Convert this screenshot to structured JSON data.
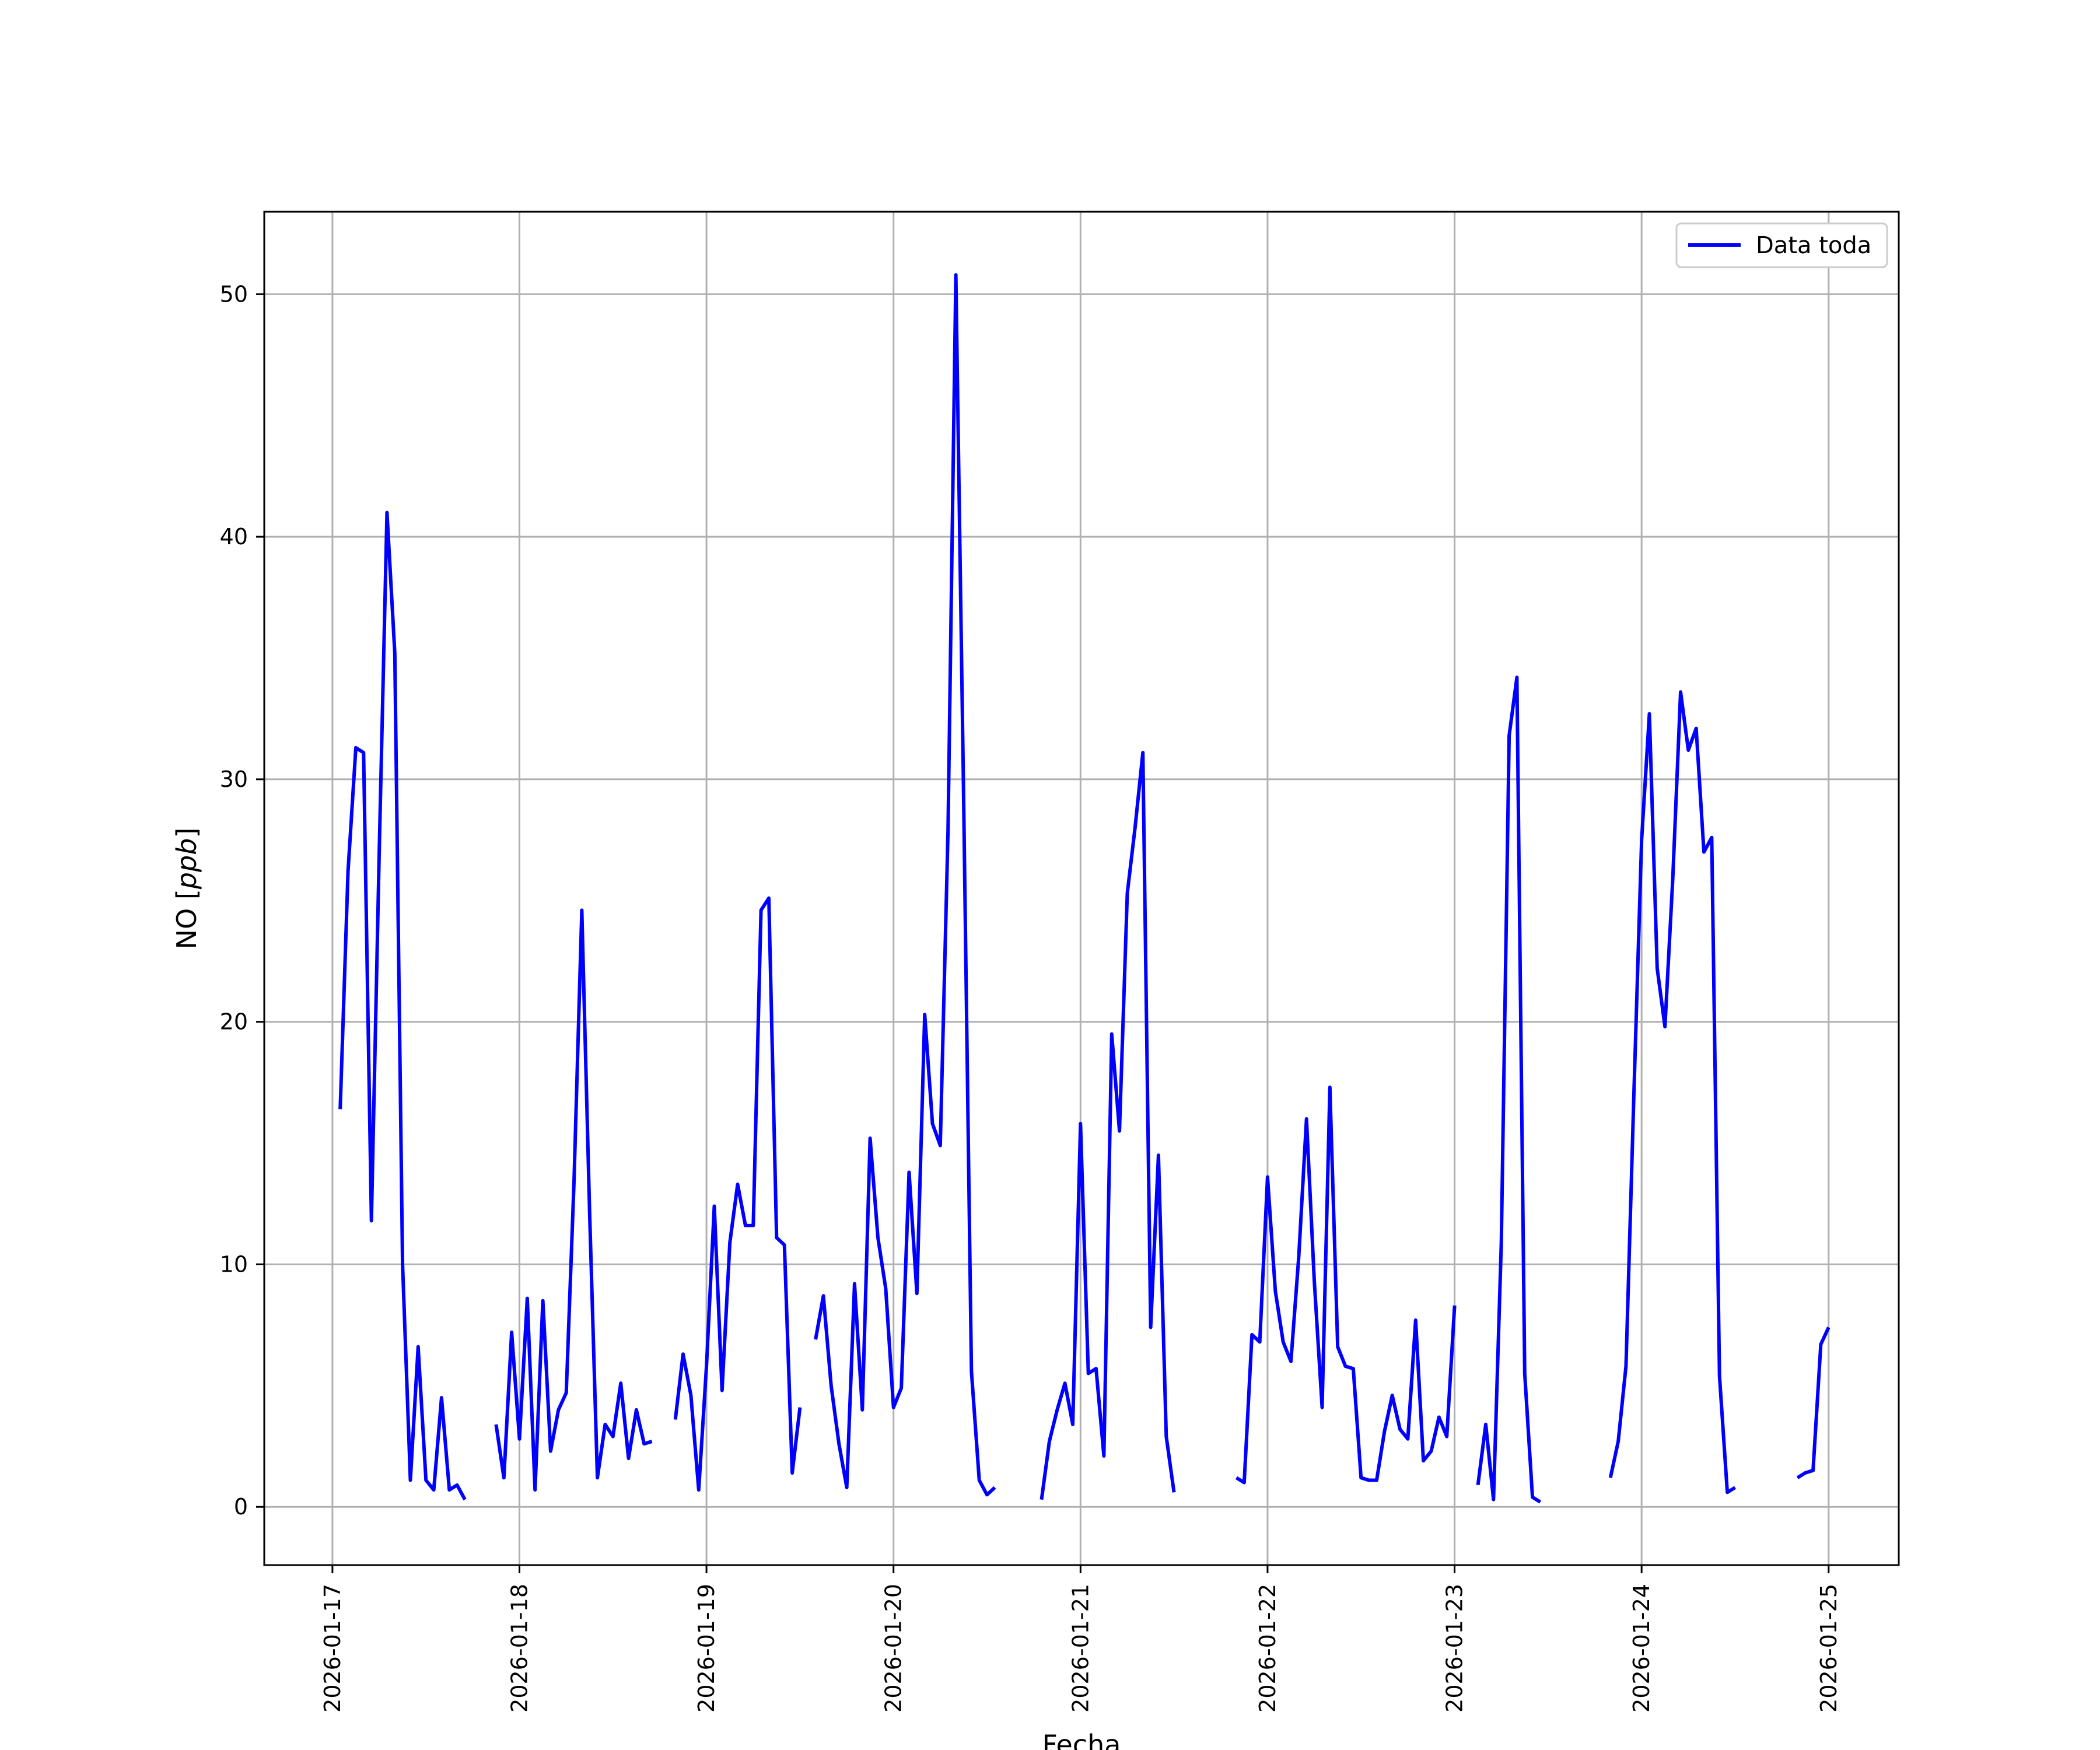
{
  "chart_data": {
    "type": "line",
    "title": "",
    "xlabel": "Fecha",
    "ylabel_prefix": "NO [",
    "ylabel_unit": "ppb",
    "ylabel_suffix": "]",
    "x_unit": "date",
    "xlim": [
      "2026-01-16 15:15",
      "2026-01-25 09:00"
    ],
    "ylim": [
      -2.4,
      53.4
    ],
    "x_ticks": [
      "2026-01-17",
      "2026-01-18",
      "2026-01-19",
      "2026-01-20",
      "2026-01-21",
      "2026-01-22",
      "2026-01-23",
      "2026-01-24",
      "2026-01-25"
    ],
    "y_ticks": [
      0,
      10,
      20,
      30,
      40,
      50
    ],
    "y_tick_labels": [
      "0",
      "10",
      "20",
      "30",
      "40",
      "50"
    ],
    "grid": true,
    "legend": {
      "position": "top-right",
      "entries": [
        "Data toda"
      ]
    },
    "series_colors": [
      "#0000ff"
    ],
    "series": [
      {
        "name": "Data toda",
        "segments": [
          [
            [
              "2026-01-17 01:00",
              16.4
            ],
            [
              "2026-01-17 02:00",
              26.2
            ],
            [
              "2026-01-17 03:00",
              31.3
            ],
            [
              "2026-01-17 04:00",
              31.1
            ],
            [
              "2026-01-17 05:00",
              11.8
            ],
            [
              "2026-01-17 06:00",
              26.9
            ],
            [
              "2026-01-17 07:00",
              41.0
            ],
            [
              "2026-01-17 08:00",
              35.2
            ],
            [
              "2026-01-17 09:00",
              10.0
            ],
            [
              "2026-01-17 10:00",
              1.1
            ],
            [
              "2026-01-17 11:00",
              6.6
            ],
            [
              "2026-01-17 12:00",
              1.1
            ],
            [
              "2026-01-17 13:00",
              0.7
            ],
            [
              "2026-01-17 14:00",
              4.5
            ],
            [
              "2026-01-17 15:00",
              0.7
            ],
            [
              "2026-01-17 16:00",
              0.9
            ],
            [
              "2026-01-17 17:00",
              0.3
            ]
          ],
          [
            [
              "2026-01-17 21:00",
              3.4
            ],
            [
              "2026-01-17 22:00",
              1.2
            ],
            [
              "2026-01-17 23:00",
              7.2
            ],
            [
              "2026-01-18 00:00",
              2.8
            ],
            [
              "2026-01-18 01:00",
              8.6
            ],
            [
              "2026-01-18 02:00",
              0.7
            ],
            [
              "2026-01-18 03:00",
              8.5
            ],
            [
              "2026-01-18 04:00",
              2.3
            ],
            [
              "2026-01-18 05:00",
              4.0
            ],
            [
              "2026-01-18 06:00",
              4.7
            ],
            [
              "2026-01-18 07:00",
              13.4
            ],
            [
              "2026-01-18 08:00",
              24.6
            ],
            [
              "2026-01-18 09:00",
              12.2
            ],
            [
              "2026-01-18 10:00",
              1.2
            ],
            [
              "2026-01-18 11:00",
              3.4
            ],
            [
              "2026-01-18 12:00",
              2.9
            ],
            [
              "2026-01-18 13:00",
              5.1
            ],
            [
              "2026-01-18 14:00",
              2.0
            ],
            [
              "2026-01-18 15:00",
              4.0
            ],
            [
              "2026-01-18 16:00",
              2.6
            ],
            [
              "2026-01-18 17:00",
              2.7
            ]
          ],
          [
            [
              "2026-01-18 20:00",
              3.6
            ],
            [
              "2026-01-18 21:00",
              6.3
            ],
            [
              "2026-01-18 22:00",
              4.6
            ],
            [
              "2026-01-18 23:00",
              0.7
            ],
            [
              "2026-01-19 00:00",
              5.8
            ],
            [
              "2026-01-19 01:00",
              12.4
            ],
            [
              "2026-01-19 02:00",
              4.8
            ],
            [
              "2026-01-19 03:00",
              10.9
            ],
            [
              "2026-01-19 04:00",
              13.3
            ],
            [
              "2026-01-19 05:00",
              11.6
            ],
            [
              "2026-01-19 06:00",
              11.6
            ],
            [
              "2026-01-19 07:00",
              24.6
            ],
            [
              "2026-01-19 08:00",
              25.1
            ],
            [
              "2026-01-19 09:00",
              11.1
            ],
            [
              "2026-01-19 10:00",
              10.8
            ],
            [
              "2026-01-19 11:00",
              1.4
            ],
            [
              "2026-01-19 12:00",
              4.1
            ]
          ],
          [
            [
              "2026-01-19 14:00",
              6.9
            ],
            [
              "2026-01-19 15:00",
              8.7
            ],
            [
              "2026-01-19 16:00",
              5.0
            ],
            [
              "2026-01-19 17:00",
              2.6
            ],
            [
              "2026-01-19 18:00",
              0.8
            ],
            [
              "2026-01-19 19:00",
              9.2
            ],
            [
              "2026-01-19 20:00",
              4.0
            ],
            [
              "2026-01-19 21:00",
              15.2
            ],
            [
              "2026-01-19 22:00",
              11.1
            ],
            [
              "2026-01-19 23:00",
              9.0
            ],
            [
              "2026-01-20 00:00",
              4.1
            ],
            [
              "2026-01-20 01:00",
              4.9
            ],
            [
              "2026-01-20 02:00",
              13.8
            ],
            [
              "2026-01-20 03:00",
              8.8
            ],
            [
              "2026-01-20 04:00",
              20.3
            ],
            [
              "2026-01-20 05:00",
              15.8
            ],
            [
              "2026-01-20 06:00",
              14.9
            ],
            [
              "2026-01-20 07:00",
              27.9
            ],
            [
              "2026-01-20 08:00",
              50.8
            ],
            [
              "2026-01-20 09:00",
              29.3
            ],
            [
              "2026-01-20 10:00",
              5.6
            ],
            [
              "2026-01-20 11:00",
              1.1
            ],
            [
              "2026-01-20 12:00",
              0.5
            ],
            [
              "2026-01-20 13:00",
              0.8
            ]
          ],
          [
            [
              "2026-01-20 19:00",
              0.3
            ],
            [
              "2026-01-20 20:00",
              2.7
            ],
            [
              "2026-01-20 21:00",
              4.0
            ],
            [
              "2026-01-20 22:00",
              5.1
            ],
            [
              "2026-01-20 23:00",
              3.4
            ],
            [
              "2026-01-21 00:00",
              15.8
            ],
            [
              "2026-01-21 01:00",
              5.5
            ],
            [
              "2026-01-21 02:00",
              5.7
            ],
            [
              "2026-01-21 03:00",
              2.1
            ],
            [
              "2026-01-21 04:00",
              19.5
            ],
            [
              "2026-01-21 05:00",
              15.5
            ],
            [
              "2026-01-21 06:00",
              25.3
            ],
            [
              "2026-01-21 07:00",
              28.0
            ],
            [
              "2026-01-21 08:00",
              31.1
            ],
            [
              "2026-01-21 09:00",
              7.4
            ],
            [
              "2026-01-21 10:00",
              14.5
            ],
            [
              "2026-01-21 11:00",
              2.9
            ],
            [
              "2026-01-21 12:00",
              0.6
            ]
          ],
          [
            [
              "2026-01-21 20:00",
              1.2
            ],
            [
              "2026-01-21 21:00",
              1.0
            ],
            [
              "2026-01-21 22:00",
              7.1
            ],
            [
              "2026-01-21 23:00",
              6.8
            ],
            [
              "2026-01-22 00:00",
              13.6
            ],
            [
              "2026-01-22 01:00",
              8.9
            ],
            [
              "2026-01-22 02:00",
              6.8
            ],
            [
              "2026-01-22 03:00",
              6.0
            ],
            [
              "2026-01-22 04:00",
              10.3
            ],
            [
              "2026-01-22 05:00",
              16.0
            ],
            [
              "2026-01-22 06:00",
              9.3
            ],
            [
              "2026-01-22 07:00",
              4.1
            ],
            [
              "2026-01-22 08:00",
              17.3
            ],
            [
              "2026-01-22 09:00",
              6.6
            ],
            [
              "2026-01-22 10:00",
              5.8
            ],
            [
              "2026-01-22 11:00",
              5.7
            ],
            [
              "2026-01-22 12:00",
              1.2
            ],
            [
              "2026-01-22 13:00",
              1.1
            ],
            [
              "2026-01-22 14:00",
              1.1
            ],
            [
              "2026-01-22 15:00",
              3.1
            ],
            [
              "2026-01-22 16:00",
              4.6
            ],
            [
              "2026-01-22 17:00",
              3.2
            ],
            [
              "2026-01-22 18:00",
              2.8
            ],
            [
              "2026-01-22 19:00",
              7.7
            ],
            [
              "2026-01-22 20:00",
              1.9
            ],
            [
              "2026-01-22 21:00",
              2.3
            ],
            [
              "2026-01-22 22:00",
              3.7
            ],
            [
              "2026-01-22 23:00",
              2.9
            ],
            [
              "2026-01-23 00:00",
              8.3
            ]
          ],
          [
            [
              "2026-01-23 03:00",
              0.9
            ],
            [
              "2026-01-23 04:00",
              3.4
            ],
            [
              "2026-01-23 05:00",
              0.3
            ],
            [
              "2026-01-23 06:00",
              10.9
            ],
            [
              "2026-01-23 07:00",
              31.8
            ],
            [
              "2026-01-23 08:00",
              34.2
            ],
            [
              "2026-01-23 09:00",
              5.5
            ],
            [
              "2026-01-23 10:00",
              0.4
            ],
            [
              "2026-01-23 11:00",
              0.2
            ]
          ],
          [
            [
              "2026-01-23 20:00",
              1.2
            ],
            [
              "2026-01-23 21:00",
              2.7
            ],
            [
              "2026-01-23 22:00",
              5.8
            ],
            [
              "2026-01-23 23:00",
              16.9
            ],
            [
              "2026-01-24 00:00",
              27.5
            ],
            [
              "2026-01-24 01:00",
              32.7
            ],
            [
              "2026-01-24 02:00",
              22.2
            ],
            [
              "2026-01-24 03:00",
              19.8
            ],
            [
              "2026-01-24 04:00",
              25.9
            ],
            [
              "2026-01-24 05:00",
              33.6
            ],
            [
              "2026-01-24 06:00",
              31.2
            ],
            [
              "2026-01-24 07:00",
              32.1
            ],
            [
              "2026-01-24 08:00",
              27.0
            ],
            [
              "2026-01-24 09:00",
              27.6
            ],
            [
              "2026-01-24 10:00",
              5.4
            ],
            [
              "2026-01-24 11:00",
              0.6
            ],
            [
              "2026-01-24 12:00",
              0.8
            ]
          ],
          [
            [
              "2026-01-24 20:00",
              1.2
            ],
            [
              "2026-01-24 21:00",
              1.4
            ],
            [
              "2026-01-24 22:00",
              1.5
            ],
            [
              "2026-01-24 23:00",
              6.7
            ],
            [
              "2026-01-25 00:00",
              7.4
            ]
          ]
        ]
      }
    ]
  }
}
